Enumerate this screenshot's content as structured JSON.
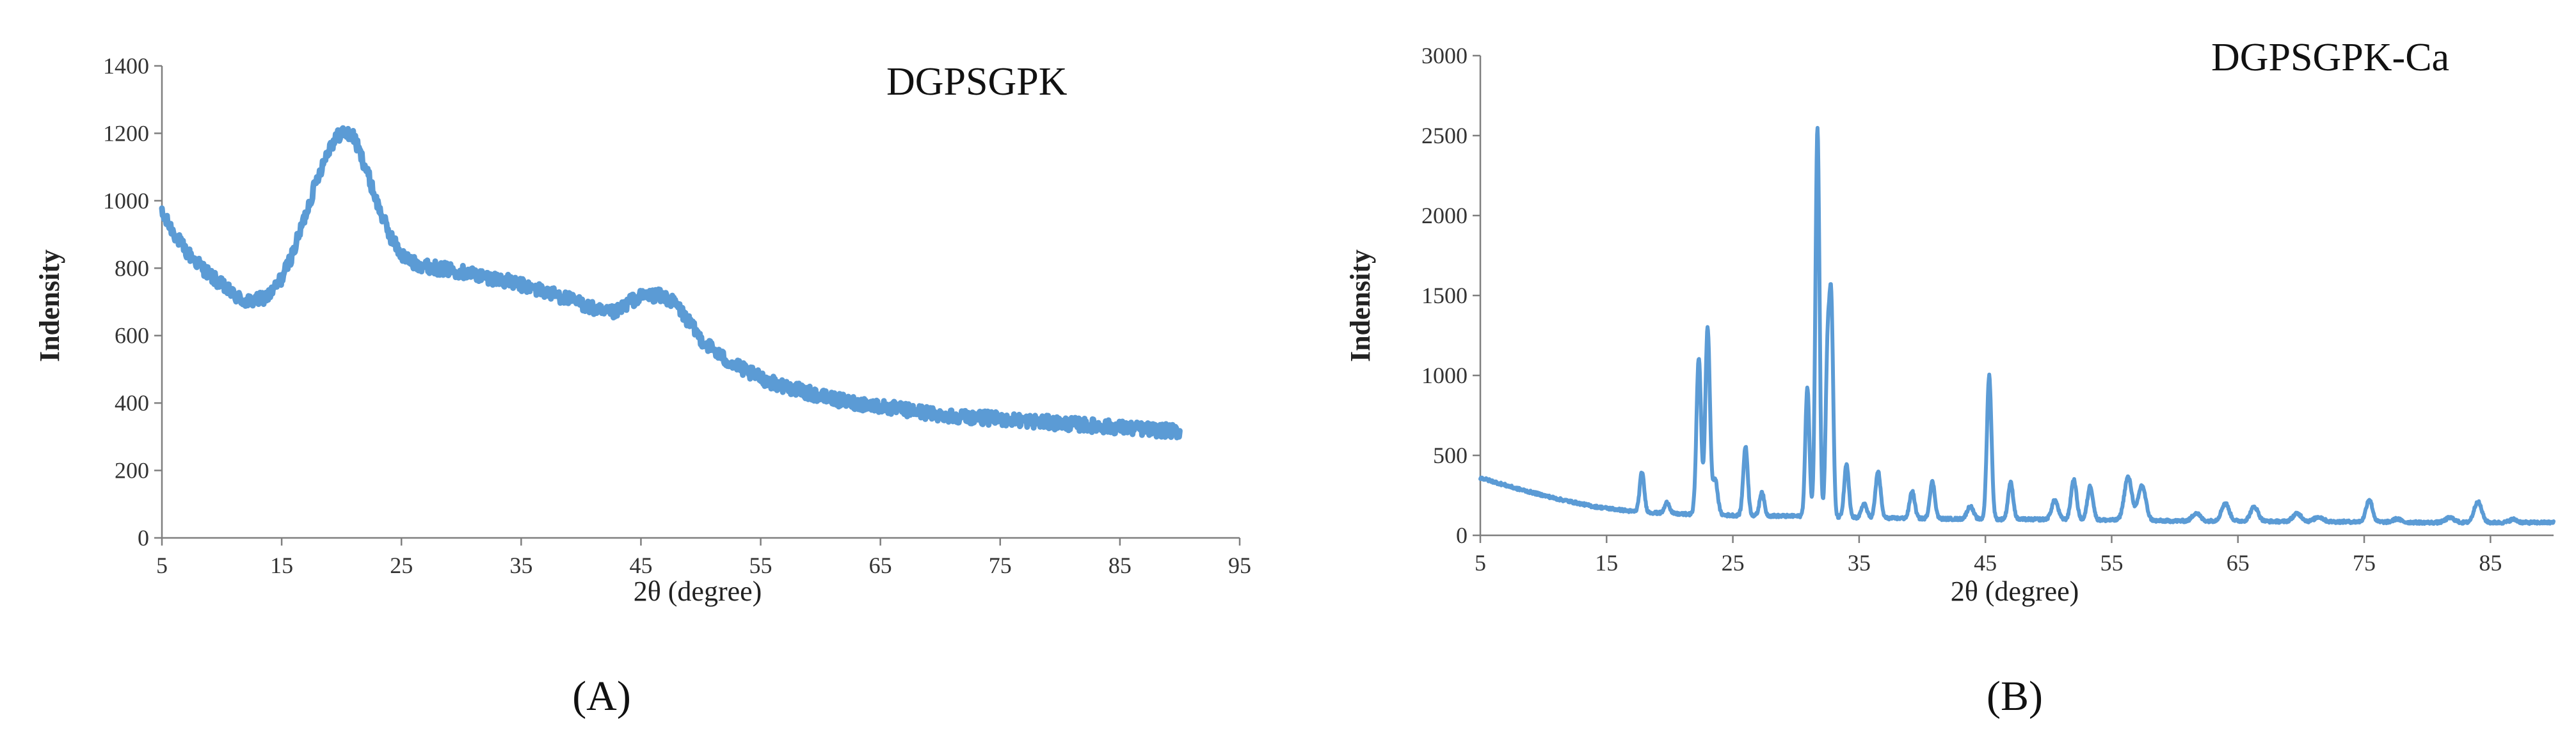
{
  "chart_data": [
    {
      "type": "line",
      "panel_label": "(A)",
      "title": "DGPSGPK",
      "xlabel": "2θ (degree)",
      "ylabel": "Indensity",
      "xlim": [
        5,
        95
      ],
      "ylim": [
        0,
        1400
      ],
      "xticks": [
        5,
        15,
        25,
        35,
        45,
        55,
        65,
        75,
        85,
        95
      ],
      "yticks": [
        0,
        200,
        400,
        600,
        800,
        1000,
        1200,
        1400
      ],
      "line_color": "#5b9bd5",
      "grid": false,
      "legend": "none",
      "series": [
        {
          "x": [
            5,
            7,
            9,
            11,
            12,
            13,
            14,
            15,
            16,
            17,
            18,
            19,
            20,
            21,
            22,
            23,
            24,
            25,
            26,
            28,
            30,
            32,
            34,
            36,
            38,
            40,
            42,
            43,
            44,
            45,
            46,
            47,
            48,
            49,
            50,
            52,
            54,
            56,
            58,
            60,
            62,
            64,
            66,
            68,
            70,
            72,
            74,
            76,
            78,
            80,
            82,
            84,
            86,
            88,
            90
          ],
          "y": [
            960,
            850,
            780,
            720,
            700,
            705,
            720,
            770,
            850,
            960,
            1070,
            1160,
            1205,
            1190,
            1100,
            990,
            900,
            840,
            815,
            800,
            790,
            775,
            760,
            740,
            720,
            695,
            665,
            670,
            700,
            715,
            720,
            715,
            690,
            640,
            590,
            530,
            490,
            460,
            440,
            420,
            405,
            395,
            385,
            375,
            365,
            360,
            355,
            350,
            345,
            340,
            335,
            330,
            325,
            320,
            315
          ]
        }
      ]
    },
    {
      "type": "line",
      "panel_label": "(B)",
      "title": "DGPSGPK-Ca",
      "xlabel": "2θ (degree)",
      "ylabel": "Indensity",
      "xlim": [
        5,
        90
      ],
      "ylim": [
        0,
        3000
      ],
      "xticks": [
        5,
        15,
        25,
        35,
        45,
        55,
        65,
        75,
        85
      ],
      "yticks": [
        0,
        500,
        1000,
        1500,
        2000,
        2500,
        3000
      ],
      "line_color": "#5b9bd5",
      "grid": false,
      "legend": "none",
      "series": [
        {
          "baseline": [
            [
              5,
              360
            ],
            [
              8,
              290
            ],
            [
              11,
              230
            ],
            [
              14,
              180
            ],
            [
              17,
              150
            ],
            [
              20,
              135
            ],
            [
              25,
              125
            ],
            [
              30,
              120
            ],
            [
              35,
              110
            ],
            [
              40,
              105
            ],
            [
              45,
              100
            ],
            [
              50,
              100
            ],
            [
              55,
              95
            ],
            [
              60,
              90
            ],
            [
              65,
              90
            ],
            [
              70,
              85
            ],
            [
              75,
              85
            ],
            [
              80,
              80
            ],
            [
              85,
              80
            ],
            [
              90,
              80
            ]
          ],
          "peaks": [
            [
              17.8,
              250,
              0.18
            ],
            [
              19.8,
              70,
              0.2
            ],
            [
              22.3,
              980,
              0.18
            ],
            [
              23.0,
              1170,
              0.18
            ],
            [
              23.6,
              220,
              0.2
            ],
            [
              26.0,
              430,
              0.18
            ],
            [
              27.3,
              150,
              0.18
            ],
            [
              30.9,
              810,
              0.16
            ],
            [
              31.7,
              2430,
              0.16
            ],
            [
              32.5,
              1000,
              0.15
            ],
            [
              32.8,
              1280,
              0.15
            ],
            [
              34.0,
              330,
              0.18
            ],
            [
              35.4,
              90,
              0.2
            ],
            [
              36.5,
              290,
              0.2
            ],
            [
              39.2,
              170,
              0.2
            ],
            [
              40.8,
              230,
              0.2
            ],
            [
              43.8,
              80,
              0.25
            ],
            [
              45.3,
              900,
              0.18
            ],
            [
              47.0,
              230,
              0.2
            ],
            [
              50.5,
              120,
              0.25
            ],
            [
              52.0,
              250,
              0.22
            ],
            [
              53.3,
              210,
              0.22
            ],
            [
              56.3,
              270,
              0.3
            ],
            [
              57.4,
              220,
              0.3
            ],
            [
              61.7,
              50,
              0.3
            ],
            [
              64.0,
              110,
              0.3
            ],
            [
              66.3,
              90,
              0.3
            ],
            [
              69.7,
              50,
              0.35
            ],
            [
              71.4,
              30,
              0.35
            ],
            [
              75.4,
              140,
              0.25
            ],
            [
              77.6,
              20,
              0.3
            ],
            [
              81.8,
              30,
              0.35
            ],
            [
              84.0,
              130,
              0.3
            ],
            [
              86.8,
              20,
              0.3
            ]
          ]
        }
      ]
    }
  ]
}
